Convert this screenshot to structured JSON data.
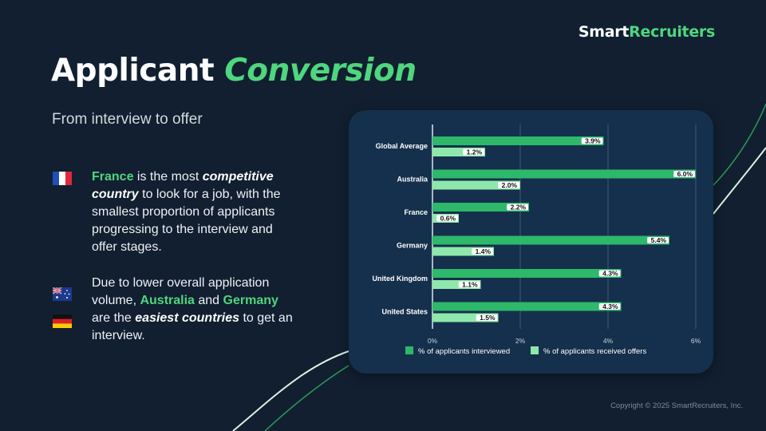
{
  "brand": {
    "part1": "Smart",
    "part2": "Recruiters"
  },
  "title": {
    "main": "Applicant ",
    "accent": "Conversion"
  },
  "subtitle": "From interview to offer",
  "bullets": [
    {
      "flag": "france-flag",
      "country": "France",
      "t1": " is the most ",
      "emph": "competitive country",
      "t2": " to look for a job, with the smallest proportion of applicants progressing to the interview and offer stages."
    },
    {
      "flags": [
        "australia-flag",
        "germany-flag"
      ],
      "t1": "Due to lower overall application volume, ",
      "c1": "Australia",
      "and": " and ",
      "c2": "Germany",
      "t2": " are the ",
      "emph": "easiest countries",
      "t3": " to get an interview."
    }
  ],
  "copyright": "Copyright © 2025 SmartRecruiters, Inc.",
  "colors": {
    "background": "#111f30",
    "card": "#15304c",
    "accent": "#4fd67e",
    "interviewed": "#2db86a",
    "offers": "#8fe8ab"
  },
  "chart_data": {
    "type": "bar",
    "orientation": "horizontal",
    "categories": [
      "Global Average",
      "Australia",
      "France",
      "Germany",
      "United Kingdom",
      "United States"
    ],
    "series": [
      {
        "name": "% of applicants interviewed",
        "values": [
          3.9,
          6.0,
          2.2,
          5.4,
          4.3,
          4.3
        ],
        "labels": [
          "3.9%",
          "6.0%",
          "2.2%",
          "5.4%",
          "4.3%",
          "4.3%"
        ]
      },
      {
        "name": "% of applicants received offers",
        "values": [
          1.2,
          2.0,
          0.6,
          1.4,
          1.1,
          1.5
        ],
        "labels": [
          "1.2%",
          "2.0%",
          "0.6%",
          "1.4%",
          "1.1%",
          "1.5%"
        ]
      }
    ],
    "xlim": [
      0,
      6
    ],
    "xticks": [
      0,
      2,
      4,
      6
    ],
    "xtick_labels": [
      "0%",
      "2%",
      "4%",
      "6%"
    ],
    "grid": true,
    "legend_position": "bottom"
  }
}
